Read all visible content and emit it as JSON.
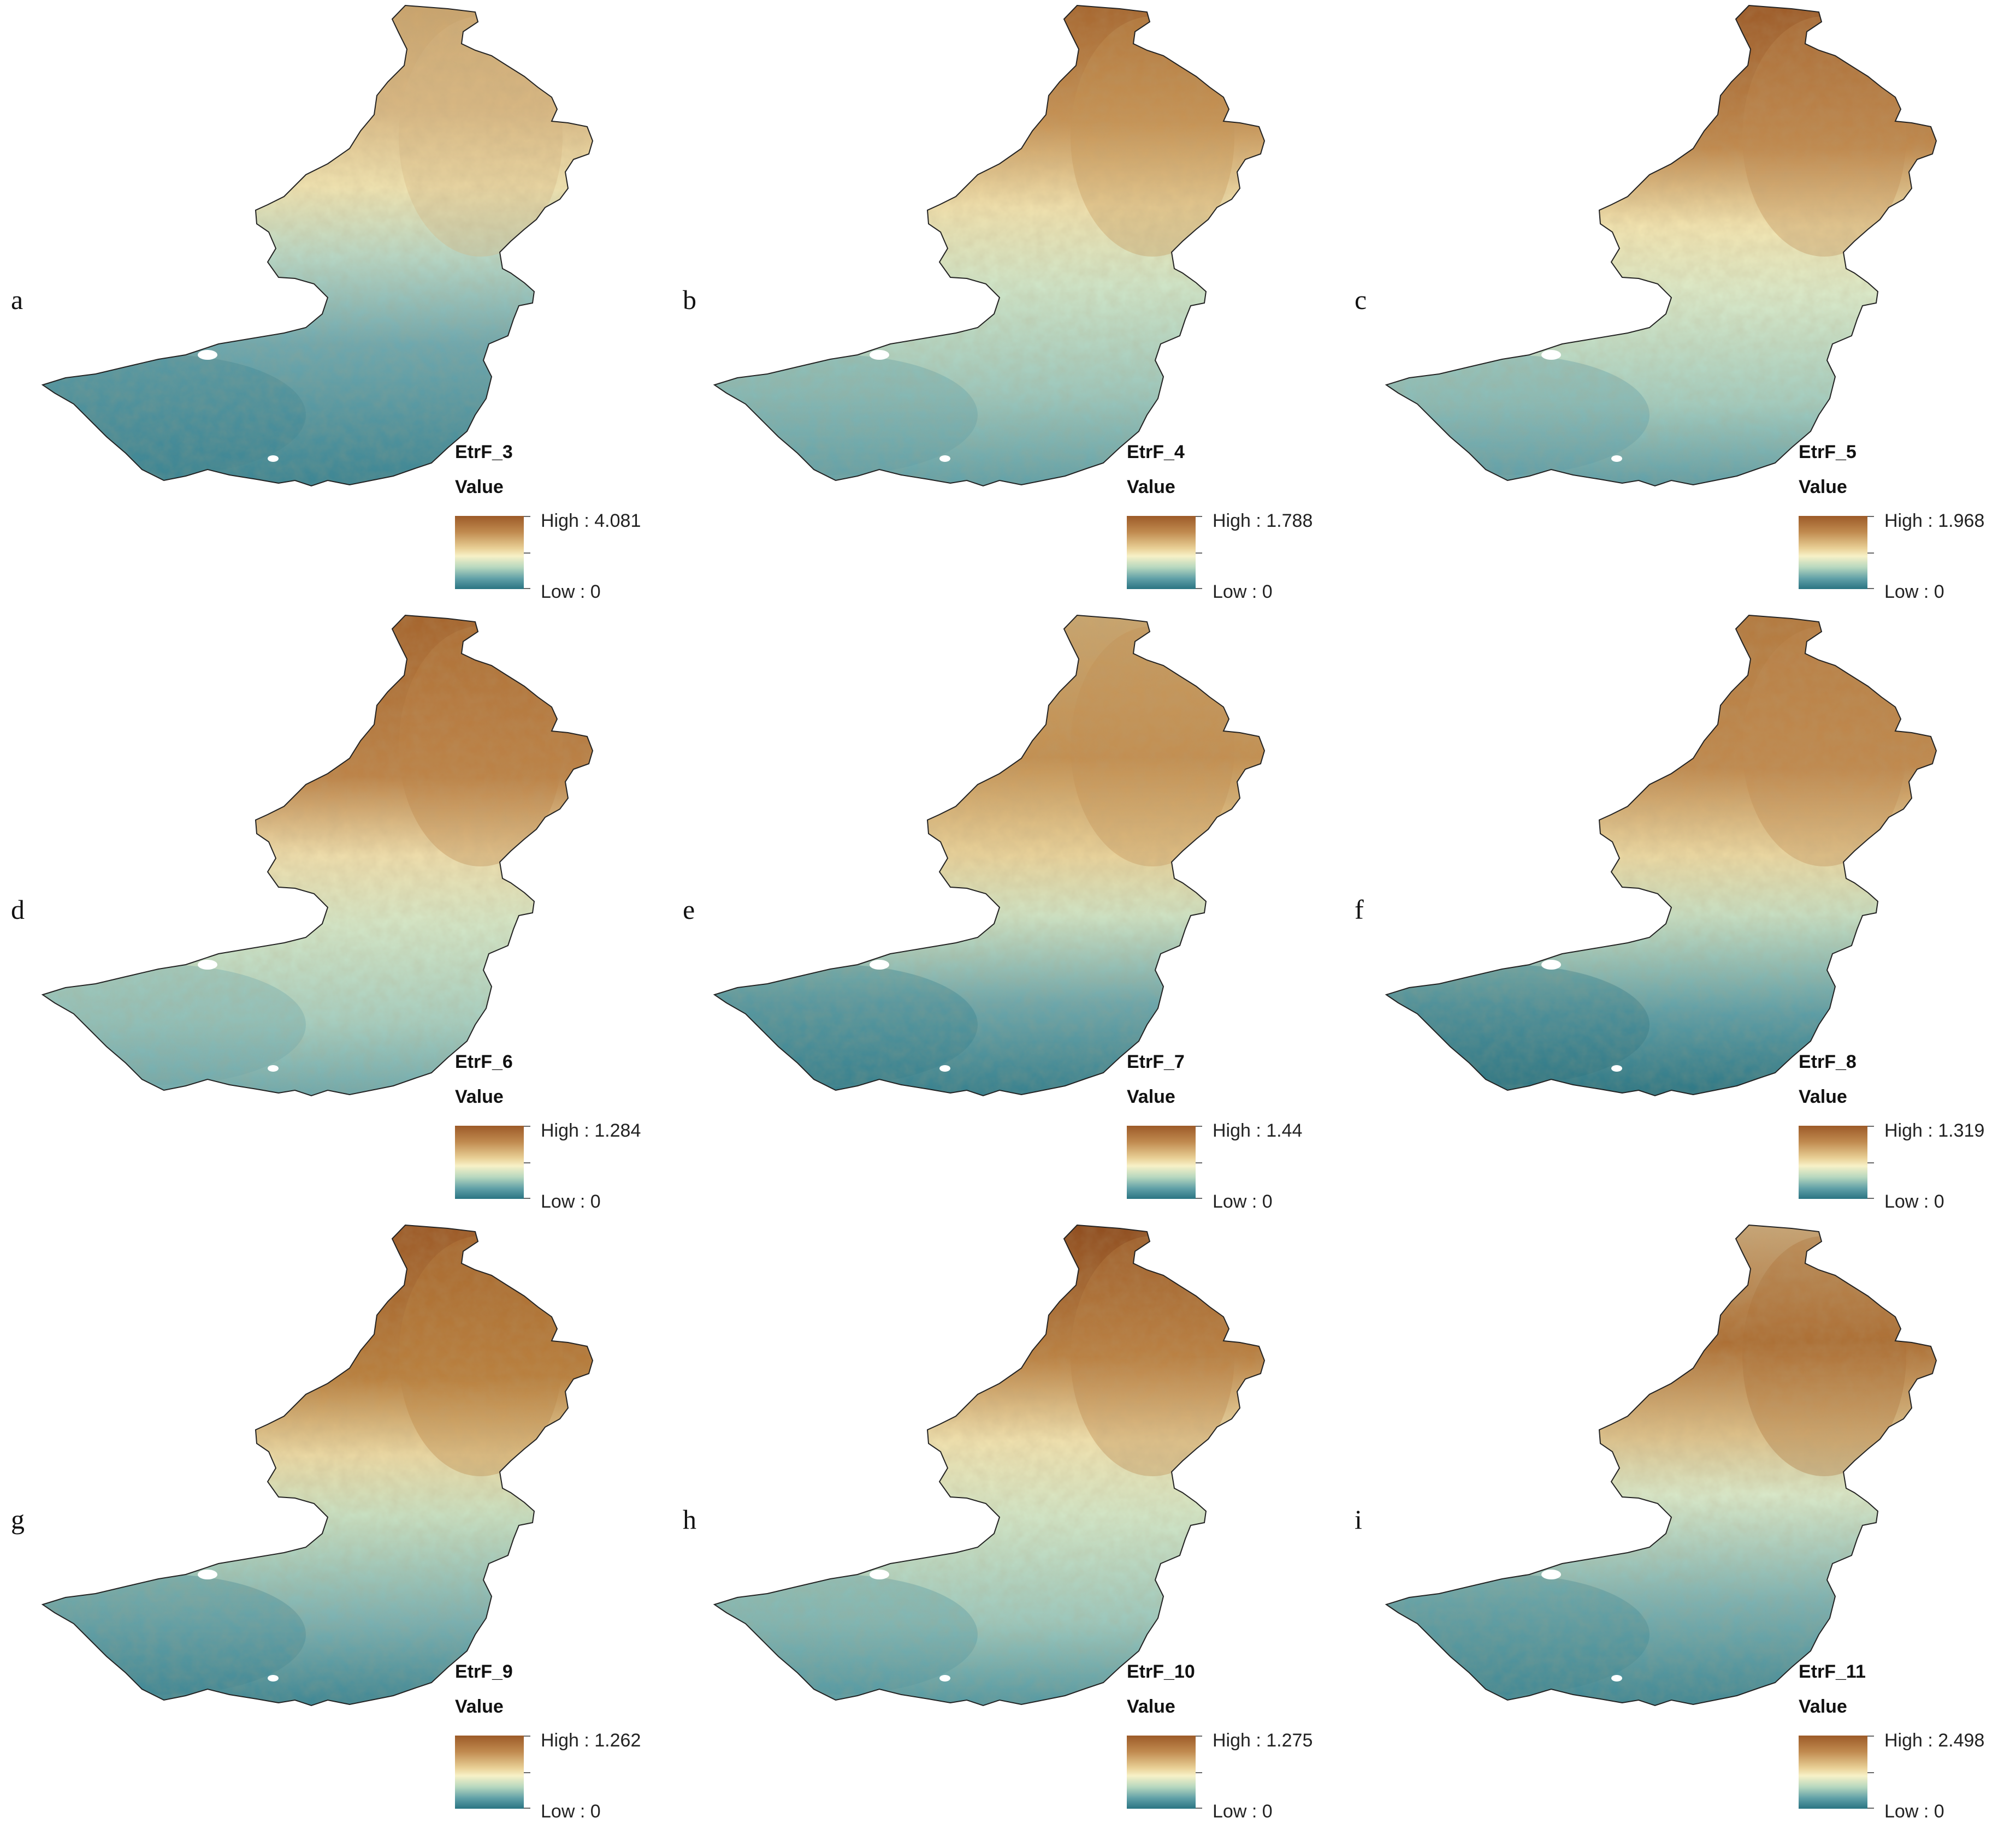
{
  "legend_value_label": "Value",
  "colormap": {
    "high_color": "#9c5a28",
    "mid_color": "#f7f1c7",
    "low_color": "#2a7482"
  },
  "panels": [
    {
      "letter": "a",
      "layer": "EtrF_3",
      "high": "High : 4.081",
      "low": "Low : 0",
      "dominant": "north-high"
    },
    {
      "letter": "b",
      "layer": "EtrF_4",
      "high": "High : 1.788",
      "low": "Low : 0",
      "dominant": "north-high"
    },
    {
      "letter": "c",
      "layer": "EtrF_5",
      "high": "High : 1.968",
      "low": "Low : 0",
      "dominant": "north-high"
    },
    {
      "letter": "d",
      "layer": "EtrF_6",
      "high": "High : 1.284",
      "low": "Low : 0",
      "dominant": "north-high"
    },
    {
      "letter": "e",
      "layer": "EtrF_7",
      "high": "High : 1.44",
      "low": "Low : 0",
      "dominant": "north-high"
    },
    {
      "letter": "f",
      "layer": "EtrF_8",
      "high": "High : 1.319",
      "low": "Low : 0",
      "dominant": "north-high"
    },
    {
      "letter": "g",
      "layer": "EtrF_9",
      "high": "High : 1.262",
      "low": "Low : 0",
      "dominant": "north-high"
    },
    {
      "letter": "h",
      "layer": "EtrF_10",
      "high": "High : 1.275",
      "low": "Low : 0",
      "dominant": "north-high"
    },
    {
      "letter": "i",
      "layer": "EtrF_11",
      "high": "High : 2.498",
      "low": "Low : 0",
      "dominant": "north-high"
    }
  ]
}
